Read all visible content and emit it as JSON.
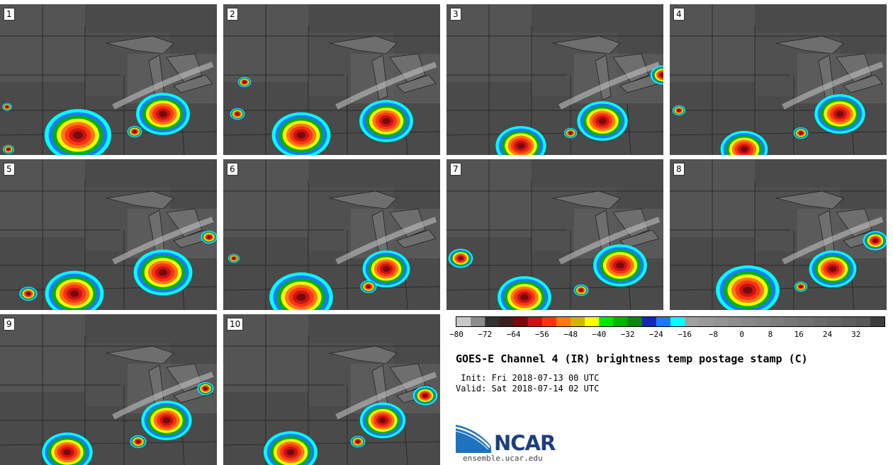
{
  "panels": [
    {
      "label": "1"
    },
    {
      "label": "2"
    },
    {
      "label": "3"
    },
    {
      "label": "4"
    },
    {
      "label": "5"
    },
    {
      "label": "6"
    },
    {
      "label": "7"
    },
    {
      "label": "8"
    },
    {
      "label": "9"
    },
    {
      "label": "10"
    }
  ],
  "colorbar": {
    "colors": [
      "#c8c8c8",
      "#8c8c8c",
      "#323232",
      "#3c1e1e",
      "#780a0a",
      "#c81414",
      "#ff3214",
      "#ff7814",
      "#d2b400",
      "#ffff00",
      "#00e600",
      "#00b400",
      "#148214",
      "#1428b4",
      "#1e78ff",
      "#00ffff",
      "#a0a0a0",
      "#9a9a9a",
      "#949494",
      "#8e8e8e",
      "#888888",
      "#828282",
      "#7c7c7c",
      "#767676",
      "#707070",
      "#6a6a6a",
      "#646464",
      "#5e5e5e",
      "#585858",
      "#3c3c3c"
    ],
    "tick_labels": [
      "−80",
      "−72",
      "−64",
      "−56",
      "−48",
      "−40",
      "−32",
      "−24",
      "−16",
      "−8",
      "0",
      "8",
      "16",
      "24",
      "32"
    ]
  },
  "title": "GOES-E Channel 4 (IR) brightness temp postage stamp (C)",
  "init": " Init: Fri 2018-07-13 00 UTC",
  "valid": "Valid: Sat 2018-07-14 02 UTC",
  "logo_text": "NCAR",
  "url": "ensemble.ucar.edu"
}
